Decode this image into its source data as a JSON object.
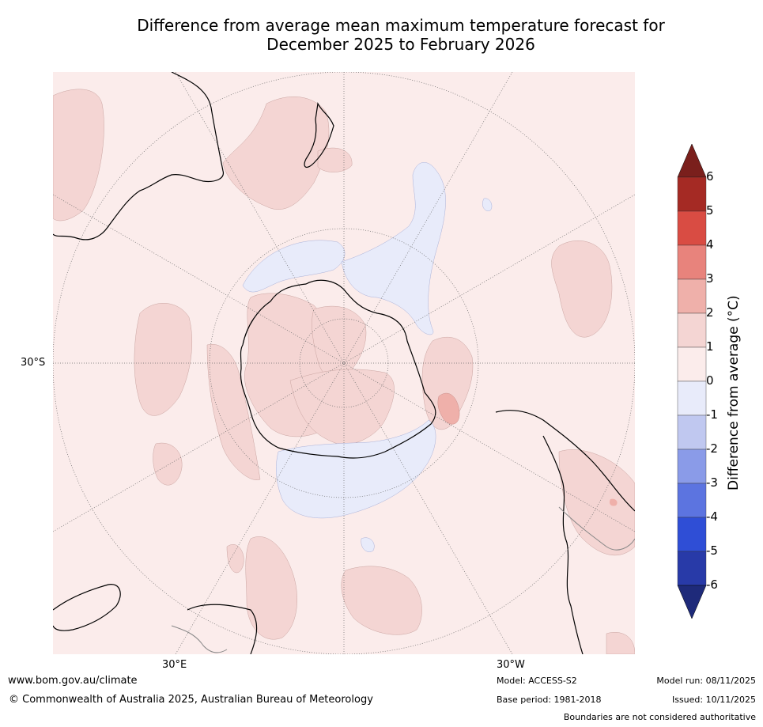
{
  "title": {
    "line1": "Difference from average mean maximum temperature forecast for",
    "line2": "December 2025 to February 2026"
  },
  "map": {
    "lat_labels": [
      "30°S"
    ],
    "lon_labels": [
      "30°E",
      "30°W"
    ],
    "icons": [
      "antarctica-map",
      "australia-coastline",
      "south-america-coastline",
      "africa-coastline",
      "new-zealand-coastline"
    ]
  },
  "colorbar": {
    "label": "Difference from average (°C)",
    "ticks": [
      "6",
      "5",
      "4",
      "3",
      "2",
      "1",
      "0",
      "-1",
      "-2",
      "-3",
      "-4",
      "-5",
      "-6"
    ],
    "colors": [
      "#a52a24",
      "#d94c43",
      "#e8837c",
      "#efb0aa",
      "#f4d5d3",
      "#fbeceb",
      "#e8ebfa",
      "#c0c8f0",
      "#8a9be8",
      "#5c74e0",
      "#2f4ed6",
      "#283aa8"
    ],
    "over_color": "#7a1f1c",
    "under_color": "#1e2a7a"
  },
  "footer": {
    "website": "www.bom.gov.au/climate",
    "copyright": "© Commonwealth of Australia 2025, Australian Bureau of Meteorology",
    "model": "Model: ACCESS-S2",
    "base_period": "Base period: 1981-2018",
    "model_run": "Model run: 08/11/2025",
    "issued": "Issued: 10/11/2025",
    "disclaimer": "Boundaries are not considered authoritative"
  }
}
